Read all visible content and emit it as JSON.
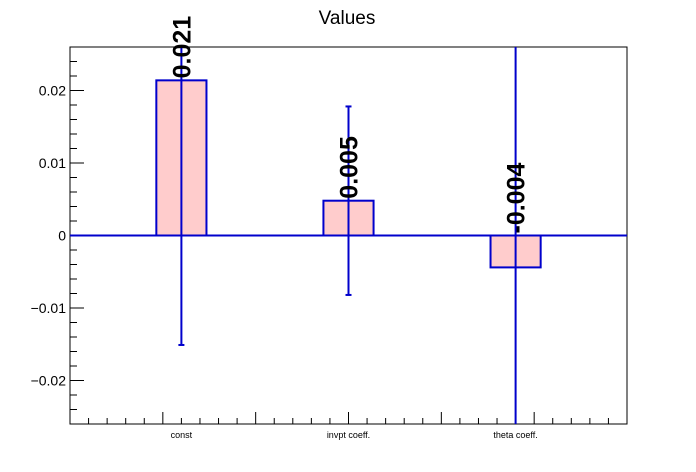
{
  "chart_data": {
    "type": "bar",
    "title": "Values",
    "xlabel": "",
    "ylabel": "",
    "categories": [
      "const",
      "invpt coeff.",
      "theta coeff."
    ],
    "values": [
      0.0214,
      0.0048,
      -0.0044
    ],
    "errors": [
      0.0365,
      0.013,
      0.038
    ],
    "data_labels": [
      "0.021",
      "0.005",
      "-0.004"
    ],
    "ylim": [
      -0.026,
      0.026
    ],
    "yticks": [
      -0.02,
      -0.01,
      0,
      0.01,
      0.02
    ],
    "ytick_labels": [
      "−0.02",
      "−0.01",
      "0",
      "0.01",
      "0.02"
    ],
    "grid": false,
    "colors": {
      "bar_fill": "#ffcccc",
      "bar_edge": "#0000cc",
      "axis": "#000000"
    }
  }
}
